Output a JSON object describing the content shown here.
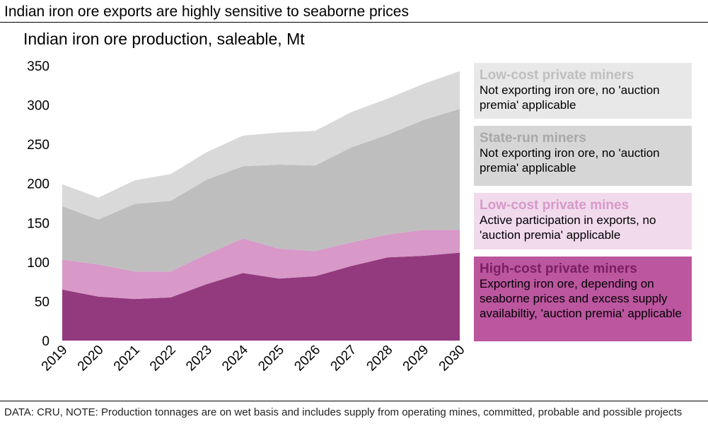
{
  "headline": "Indian iron ore exports are highly sensitive to seaborne prices",
  "footnote": "DATA: CRU, NOTE: Production tonnages are on wet basis and includes supply from operating mines, committed, probable and possible projects",
  "legend": [
    {
      "title": "Low-cost private miners",
      "desc": "Not exporting iron ore, no 'auction premia' applicable",
      "bg": "#e8e8e8",
      "title_color": "#bfbfbf"
    },
    {
      "title": "State-run miners",
      "desc": "Not exporting iron ore, no 'auction premia' applicable",
      "bg": "#d6d6d6",
      "title_color": "#a8a8a8"
    },
    {
      "title": "Low-cost private mines",
      "desc": "Active participation in exports, no 'auction premia' applicable",
      "bg": "#f1daec",
      "title_color": "#d69ac9"
    },
    {
      "title": "High-cost private miners",
      "desc": "Exporting iron ore, depending on seaborne prices and excess supply availabiltiy, 'auction premia' applicable",
      "bg": "#bb569f",
      "title_color": "#7a1f63"
    }
  ],
  "chart_data": {
    "type": "area",
    "stacked": true,
    "title": "Indian iron ore production, saleable, Mt",
    "xlabel": "",
    "ylabel": "",
    "ylim": [
      0,
      350
    ],
    "yticks": [
      0,
      50,
      100,
      150,
      200,
      250,
      300,
      350
    ],
    "categories": [
      "2019",
      "2020",
      "2021",
      "2022",
      "2023",
      "2024",
      "2025",
      "2026",
      "2027",
      "2028",
      "2029",
      "2030"
    ],
    "series": [
      {
        "name": "High-cost private miners",
        "color": "#933a7e",
        "values": [
          65,
          56,
          53,
          55,
          72,
          86,
          79,
          82,
          95,
          106,
          108,
          112
        ]
      },
      {
        "name": "Low-cost private mines",
        "color": "#d898c8",
        "values": [
          38,
          41,
          35,
          33,
          38,
          44,
          38,
          32,
          30,
          29,
          33,
          29
        ]
      },
      {
        "name": "State-run miners",
        "color": "#bebebe",
        "values": [
          68,
          57,
          86,
          90,
          95,
          92,
          107,
          109,
          121,
          127,
          140,
          154
        ]
      },
      {
        "name": "Low-cost private miners",
        "color": "#d9d9d9",
        "values": [
          28,
          28,
          30,
          34,
          35,
          39,
          41,
          44,
          45,
          46,
          46,
          48
        ]
      }
    ]
  }
}
